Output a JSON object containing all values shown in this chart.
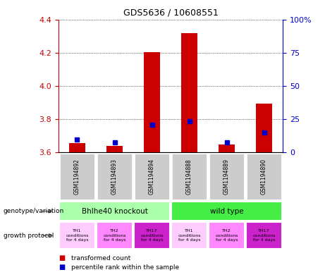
{
  "title": "GDS5636 / 10608551",
  "samples": [
    "GSM1194892",
    "GSM1194893",
    "GSM1194894",
    "GSM1194888",
    "GSM1194889",
    "GSM1194890"
  ],
  "red_values": [
    3.654,
    3.638,
    4.203,
    4.318,
    3.648,
    3.895
  ],
  "blue_values": [
    9.5,
    7.5,
    20.5,
    23.5,
    7.5,
    15.0
  ],
  "y_min": 3.6,
  "y_max": 4.4,
  "y_ticks": [
    3.6,
    3.8,
    4.0,
    4.2,
    4.4
  ],
  "y2_ticks": [
    0,
    25,
    50,
    75,
    100
  ],
  "genotype_labels": [
    "Bhlhe40 knockout",
    "wild type"
  ],
  "genotype_colors": [
    "#aaffaa",
    "#44ee44"
  ],
  "growth_labels": [
    "TH1\nconditions\nfor 4 days",
    "TH2\nconditions\nfor 4 days",
    "TH17\nconditions\nfor 4 days",
    "TH1\nconditions\nfor 4 days",
    "TH2\nconditions\nfor 4 days",
    "TH17\nconditions\nfor 4 days"
  ],
  "growth_colors": [
    "#ffccff",
    "#ff88ff",
    "#cc22cc",
    "#ffccff",
    "#ff88ff",
    "#cc22cc"
  ],
  "sample_bg_color": "#cccccc",
  "bar_color": "#cc0000",
  "dot_color": "#0000cc",
  "left_axis_color": "#cc0000",
  "right_axis_color": "#0000cc",
  "legend_items": [
    "transformed count",
    "percentile rank within the sample"
  ],
  "legend_colors": [
    "#cc0000",
    "#0000cc"
  ],
  "left_labels": [
    "genotype/variation",
    "growth protocol"
  ]
}
